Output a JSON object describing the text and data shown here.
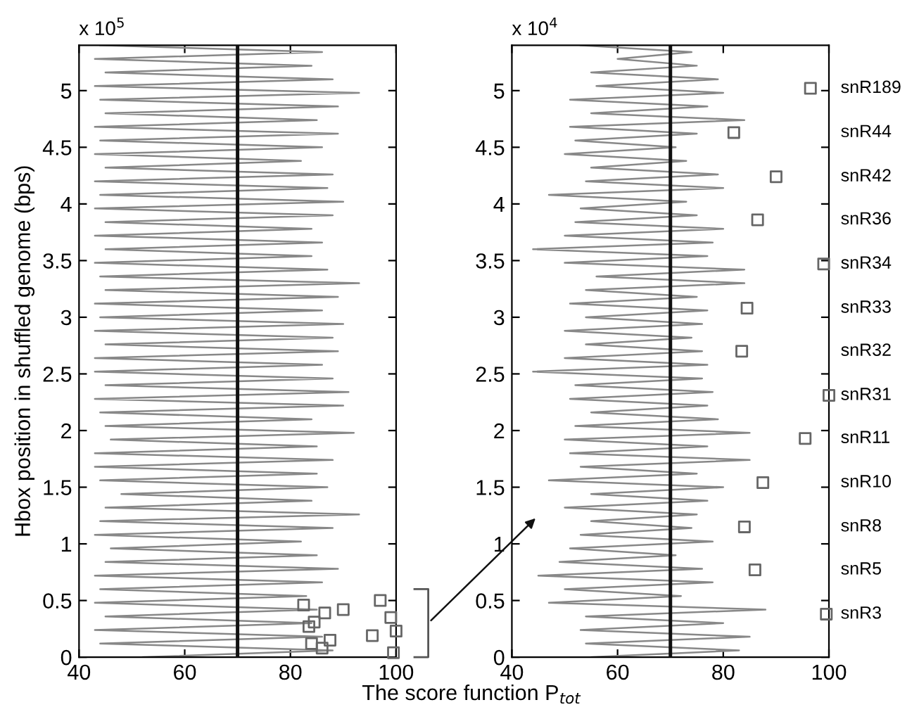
{
  "chart_data": [
    {
      "type": "line",
      "ylabel": "Hbox position in shuffled genome (bps)",
      "xlabel": "The score function P$_{tot}$",
      "xlim": [
        40,
        100
      ],
      "xticks": [
        40,
        60,
        80,
        100
      ],
      "ylim": [
        0,
        5.4
      ],
      "yticks": [
        0,
        0.5,
        1,
        1.5,
        2,
        2.5,
        3,
        3.5,
        4,
        4.5,
        5
      ],
      "annotations": [
        "x 10$^{5}$"
      ],
      "ref_lines": [
        {
          "axis": "x",
          "value": 70,
          "color": "#111111"
        }
      ],
      "series": [
        {
          "color": "#888888",
          "marker": "none",
          "x": [
            52,
            88,
            44,
            86,
            43,
            84,
            45,
            85,
            43,
            83,
            44,
            86,
            43,
            89,
            45,
            85,
            46,
            82,
            43,
            88,
            44,
            93,
            45,
            84,
            48,
            87,
            44,
            85,
            43,
            88,
            43,
            85,
            46,
            92,
            45,
            84,
            44,
            90,
            43,
            91,
            45,
            88,
            43,
            86,
            43,
            89,
            45,
            88,
            43,
            90,
            44,
            86,
            43,
            89,
            45,
            93,
            44,
            87,
            43,
            84,
            45,
            86,
            43,
            84,
            45,
            88,
            43,
            90,
            44,
            87,
            43,
            88,
            45,
            82,
            43,
            86,
            44,
            89,
            43,
            85,
            45,
            89,
            44,
            93,
            43,
            88,
            45,
            84,
            43,
            86,
            44
          ],
          "values": [
            0,
            0.06,
            0.12,
            0.18,
            0.24,
            0.3,
            0.36,
            0.42,
            0.48,
            0.54,
            0.6,
            0.66,
            0.72,
            0.78,
            0.84,
            0.9,
            0.96,
            1.02,
            1.08,
            1.14,
            1.2,
            1.26,
            1.32,
            1.38,
            1.44,
            1.5,
            1.56,
            1.62,
            1.68,
            1.74,
            1.8,
            1.86,
            1.92,
            1.98,
            2.04,
            2.1,
            2.16,
            2.22,
            2.28,
            2.34,
            2.4,
            2.46,
            2.52,
            2.58,
            2.64,
            2.7,
            2.76,
            2.82,
            2.88,
            2.94,
            3,
            3.06,
            3.12,
            3.18,
            3.24,
            3.3,
            3.36,
            3.42,
            3.48,
            3.54,
            3.6,
            3.66,
            3.72,
            3.78,
            3.84,
            3.9,
            3.96,
            4.02,
            4.08,
            4.14,
            4.2,
            4.26,
            4.32,
            4.38,
            4.44,
            4.5,
            4.56,
            4.62,
            4.68,
            4.74,
            4.8,
            4.86,
            4.92,
            4.98,
            5.04,
            5.1,
            5.16,
            5.22,
            5.28,
            5.34,
            5.4
          ]
        },
        {
          "type": "scatter",
          "color": "#666666",
          "marker": "square",
          "x": [
            99.5,
            86,
            84,
            87.5,
            95.5,
            100,
            83.5,
            84.5,
            99,
            86.5,
            90,
            82.5,
            97
          ],
          "values": [
            0.04,
            0.08,
            0.12,
            0.15,
            0.19,
            0.23,
            0.27,
            0.31,
            0.35,
            0.39,
            0.42,
            0.46,
            0.5
          ]
        }
      ]
    },
    {
      "type": "line",
      "xlim": [
        40,
        100
      ],
      "xticks": [
        40,
        60,
        80,
        100
      ],
      "ylim": [
        0,
        5.4
      ],
      "yticks": [
        0,
        0.5,
        1,
        1.5,
        2,
        2.5,
        3,
        3.5,
        4,
        4.5,
        5
      ],
      "annotations": [
        "x 10$^{4}$",
        "snR189",
        "snR44",
        "snR42",
        "snR36",
        "snR34",
        "snR33",
        "snR32",
        "snR31",
        "snR11",
        "snR10",
        "snR8",
        "snR5",
        "snR3"
      ],
      "ref_lines": [
        {
          "axis": "x",
          "value": 70,
          "color": "#111111"
        }
      ],
      "series": [
        {
          "color": "#888888",
          "marker": "none",
          "x": [
            55,
            83,
            54,
            85,
            53,
            80,
            54,
            88,
            47,
            72,
            50,
            78,
            45,
            76,
            49,
            71,
            51,
            78,
            53,
            74,
            55,
            75,
            50,
            77,
            55,
            80,
            47,
            75,
            53,
            85,
            51,
            77,
            50,
            85,
            52,
            79,
            55,
            77,
            51,
            78,
            52,
            76,
            44,
            77,
            50,
            76,
            54,
            74,
            50,
            76,
            54,
            77,
            51,
            75,
            54,
            84,
            56,
            84,
            50,
            77,
            44,
            78,
            50,
            80,
            52,
            75,
            53,
            73,
            47,
            80,
            54,
            79,
            55,
            73,
            50,
            71,
            52,
            75,
            51,
            84,
            55,
            77,
            51,
            80,
            56,
            79,
            55,
            75,
            60,
            74,
            53
          ],
          "values": [
            0,
            0.06,
            0.12,
            0.18,
            0.24,
            0.3,
            0.36,
            0.42,
            0.48,
            0.54,
            0.6,
            0.66,
            0.72,
            0.78,
            0.84,
            0.9,
            0.96,
            1.02,
            1.08,
            1.14,
            1.2,
            1.26,
            1.32,
            1.38,
            1.44,
            1.5,
            1.56,
            1.62,
            1.68,
            1.74,
            1.8,
            1.86,
            1.92,
            1.98,
            2.04,
            2.1,
            2.16,
            2.22,
            2.28,
            2.34,
            2.4,
            2.46,
            2.52,
            2.58,
            2.64,
            2.7,
            2.76,
            2.82,
            2.88,
            2.94,
            3,
            3.06,
            3.12,
            3.18,
            3.24,
            3.3,
            3.36,
            3.42,
            3.48,
            3.54,
            3.6,
            3.66,
            3.72,
            3.78,
            3.84,
            3.9,
            3.96,
            4.02,
            4.08,
            4.14,
            4.2,
            4.26,
            4.32,
            4.38,
            4.44,
            4.5,
            4.56,
            4.62,
            4.68,
            4.74,
            4.8,
            4.86,
            4.92,
            4.98,
            5.04,
            5.1,
            5.16,
            5.22,
            5.28,
            5.34,
            5.4
          ]
        },
        {
          "type": "scatter",
          "color": "#666666",
          "marker": "square",
          "x": [
            96.5,
            82,
            90,
            86.5,
            99,
            84.5,
            83.5,
            100,
            95.5,
            87.5,
            84,
            86,
            99.5
          ],
          "values": [
            5.02,
            4.63,
            4.24,
            3.86,
            3.47,
            3.08,
            2.7,
            2.31,
            1.93,
            1.54,
            1.15,
            0.77,
            0.38
          ]
        }
      ]
    }
  ]
}
